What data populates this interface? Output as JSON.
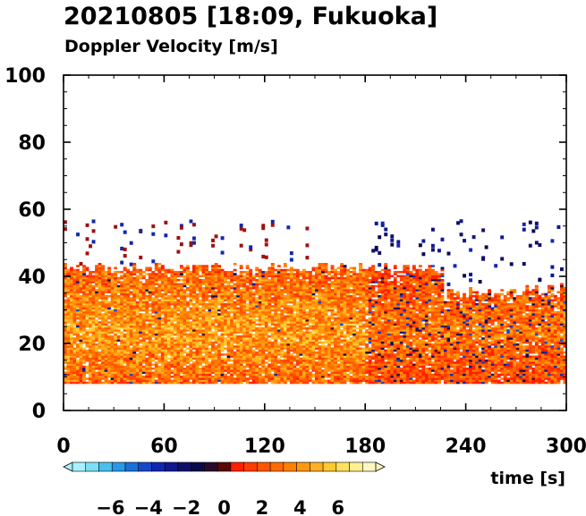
{
  "chart_data": {
    "type": "heatmap",
    "title": "20210805 [18:09, Fukuoka]",
    "subtitle": "Doppler Velocity [m/s]",
    "xlabel": "time [s]",
    "ylabel": "",
    "xlim": [
      0,
      300
    ],
    "ylim": [
      0,
      100
    ],
    "x_ticks": [
      "0",
      "60",
      "120",
      "180",
      "240",
      "300"
    ],
    "y_ticks": [
      "0",
      "20",
      "40",
      "60",
      "80",
      "100"
    ],
    "grid": false,
    "colorbar": {
      "range": [
        -8,
        8
      ],
      "tick_labels": [
        "−6",
        "−4",
        "−2",
        "0",
        "2",
        "4",
        "6"
      ],
      "tick_values": [
        -6,
        -4,
        -2,
        0,
        2,
        4,
        6
      ],
      "colors": [
        "#a8f0ff",
        "#7ce0f5",
        "#48c0f0",
        "#2898e8",
        "#1870d8",
        "#1448c8",
        "#1028b0",
        "#101890",
        "#10106a",
        "#0a0a4a",
        "#2a0a2a",
        "#5a0808",
        "#ff2000",
        "#ff3c00",
        "#ff5500",
        "#ff6a00",
        "#ff8000",
        "#ff9810",
        "#ffb020",
        "#ffc830",
        "#ffe060",
        "#fff090",
        "#fff8c0"
      ]
    },
    "echo_layer": {
      "height_bottom": 8,
      "main_top": 42,
      "scattered_top": 57,
      "dominant_velocity": "positive (red-orange-yellow)",
      "negative_echoes": "scattered dark blue, mostly after 180 s"
    }
  }
}
